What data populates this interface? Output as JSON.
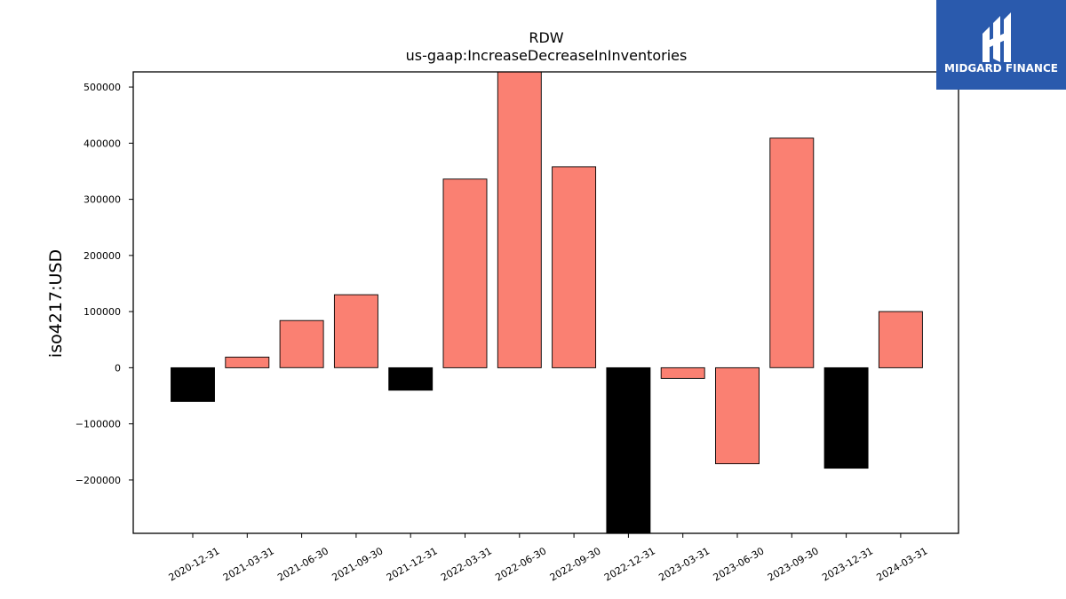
{
  "chart_data": {
    "type": "bar",
    "title": "RDW",
    "subtitle": "us-gaap:IncreaseDecreaseInInventories",
    "ylabel": "iso4217:USD",
    "xlabel": "",
    "categories": [
      "2020-12-31",
      "2021-03-31",
      "2021-06-30",
      "2021-09-30",
      "2021-12-31",
      "2022-03-31",
      "2022-06-30",
      "2022-09-30",
      "2022-12-31",
      "2023-03-31",
      "2023-06-30",
      "2023-09-30",
      "2023-12-31",
      "2024-03-31"
    ],
    "values": [
      -60000,
      19000,
      84000,
      130000,
      -40000,
      336000,
      530000,
      358000,
      -297000,
      -19000,
      -171000,
      409000,
      -179000,
      100000
    ],
    "colors": [
      "#000000",
      "#fa8072",
      "#fa8072",
      "#fa8072",
      "#000000",
      "#fa8072",
      "#fa8072",
      "#fa8072",
      "#000000",
      "#fa8072",
      "#fa8072",
      "#fa8072",
      "#000000",
      "#fa8072"
    ],
    "ylim": [
      -295000,
      527000
    ],
    "yticks": [
      -200000,
      -100000,
      0,
      100000,
      200000,
      300000,
      400000,
      500000
    ],
    "ytick_labels": [
      "−200000",
      "−100000",
      "0",
      "100000",
      "200000",
      "300000",
      "400000",
      "500000"
    ],
    "grid": false,
    "legend": "none"
  },
  "logo": {
    "text": "MIDGARD FINANCE",
    "bg_color": "#2a5aad"
  }
}
